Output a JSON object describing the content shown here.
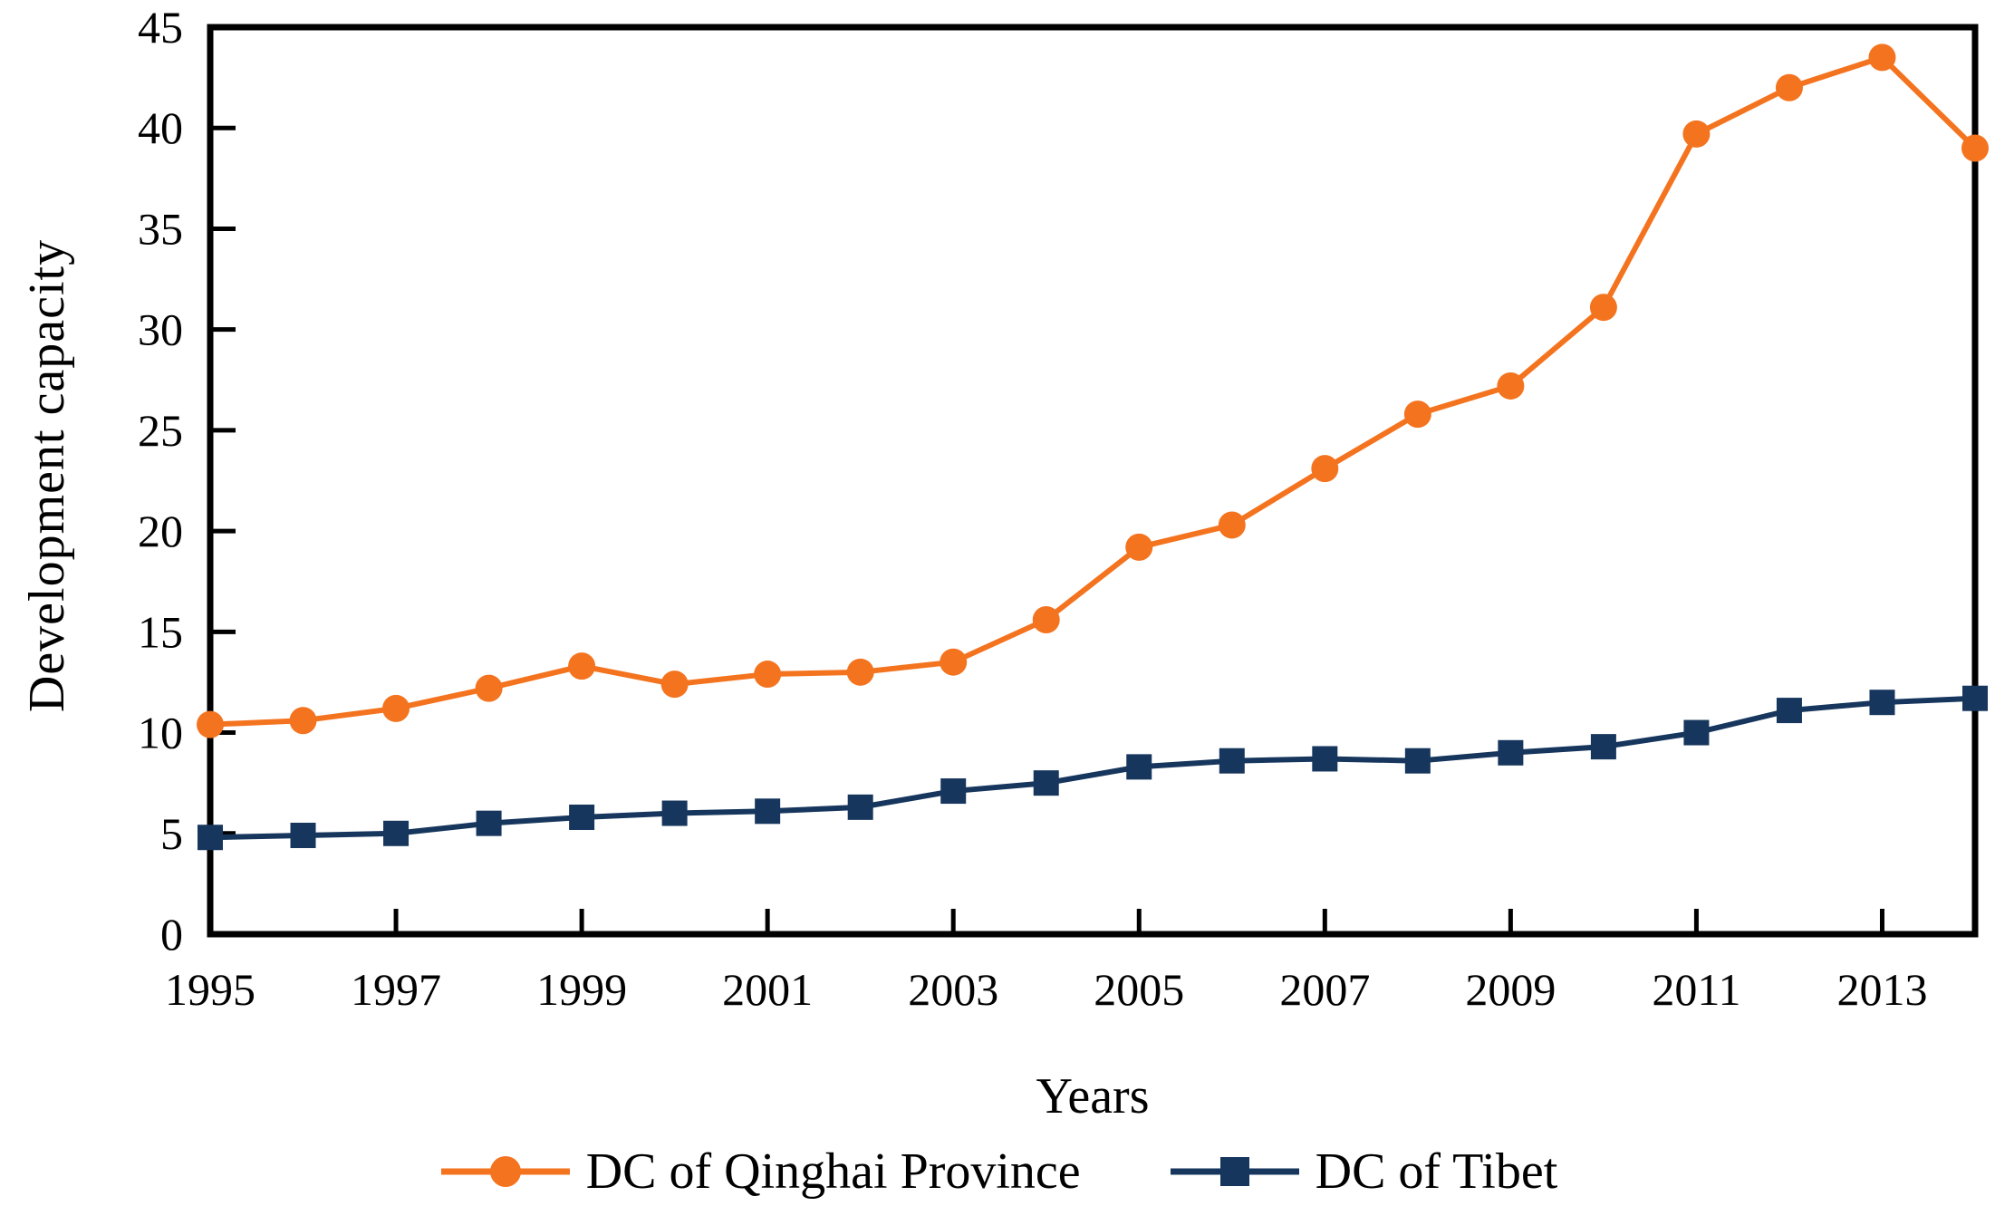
{
  "chart_data": {
    "type": "line",
    "title": "",
    "xlabel": "Years",
    "ylabel": "Development capacity",
    "x_range": [
      1995,
      2014
    ],
    "ylim": [
      0,
      45
    ],
    "grid": false,
    "legend_position": "bottom",
    "y_ticks": [
      0,
      5,
      10,
      15,
      20,
      25,
      30,
      35,
      40,
      45
    ],
    "x_tick_years": [
      1995,
      1997,
      1999,
      2001,
      2003,
      2005,
      2007,
      2009,
      2011,
      2013
    ],
    "x": [
      1995,
      1996,
      1997,
      1998,
      1999,
      2000,
      2001,
      2002,
      2003,
      2004,
      2005,
      2006,
      2007,
      2008,
      2009,
      2010,
      2011,
      2012,
      2013,
      2014
    ],
    "series": [
      {
        "name": "DC of Qinghai Province",
        "color": "#F4731F",
        "marker": "circle",
        "values": [
          10.4,
          10.6,
          11.2,
          12.2,
          13.3,
          12.4,
          12.9,
          13.0,
          13.5,
          15.6,
          19.2,
          20.3,
          23.1,
          25.8,
          27.2,
          31.1,
          39.7,
          42.0,
          43.5,
          39.0
        ]
      },
      {
        "name": "DC of Tibet",
        "color": "#17365D",
        "marker": "square",
        "values": [
          4.8,
          4.9,
          5.0,
          5.5,
          5.8,
          6.0,
          6.1,
          6.3,
          7.1,
          7.5,
          8.3,
          8.6,
          8.7,
          8.6,
          9.0,
          9.3,
          10.0,
          11.1,
          11.5,
          11.7
        ]
      }
    ]
  }
}
